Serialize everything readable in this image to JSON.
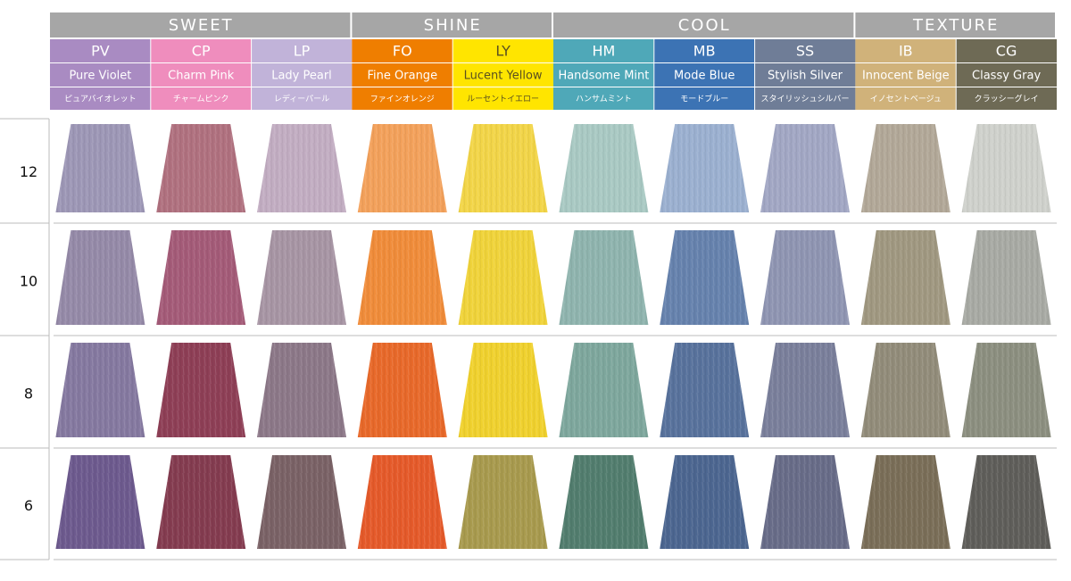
{
  "groups": [
    {
      "label": "SWEET",
      "colors": [
        {
          "code": "PV",
          "name": "Pure Violet",
          "jp": "ピュアバイオレット",
          "color": "#a98bc2",
          "text": "#ffffff"
        },
        {
          "code": "CP",
          "name": "Charm Pink",
          "jp": "チャームピンク",
          "color": "#ef8dbd",
          "text": "#ffffff"
        },
        {
          "code": "LP",
          "name": "Lady Pearl",
          "jp": "レディーパール",
          "color": "#c1b3d9",
          "text": "#ffffff"
        }
      ]
    },
    {
      "label": "SHINE",
      "colors": [
        {
          "code": "FO",
          "name": "Fine Orange",
          "jp": "ファインオレンジ",
          "color": "#ef7e00",
          "text": "#ffffff"
        },
        {
          "code": "LY",
          "name": "Lucent Yellow",
          "jp": "ルーセントイエロー",
          "color": "#ffe500",
          "text": "#5a5020"
        }
      ]
    },
    {
      "label": "COOL",
      "colors": [
        {
          "code": "HM",
          "name": "Handsome Mint",
          "jp": "ハンサムミント",
          "color": "#4fa8b8",
          "text": "#ffffff"
        },
        {
          "code": "MB",
          "name": "Mode Blue",
          "jp": "モードブルー",
          "color": "#3c73b4",
          "text": "#ffffff"
        },
        {
          "code": "SS",
          "name": "Stylish Silver",
          "jp": "スタイリッシュシルバー",
          "color": "#6f7d97",
          "text": "#ffffff"
        }
      ]
    },
    {
      "label": "TEXTURE",
      "colors": [
        {
          "code": "IB",
          "name": "Innocent Beige",
          "jp": "イノセントベージュ",
          "color": "#d0b27a",
          "text": "#ffffff"
        },
        {
          "code": "CG",
          "name": "Classy Gray",
          "jp": "クラッシーグレイ",
          "color": "#6e6a55",
          "text": "#ffffff"
        }
      ]
    }
  ],
  "levels": [
    {
      "label": "12",
      "swatches": [
        "#9d97b6",
        "#b0717f",
        "#c2adc2",
        "#f3a15b",
        "#f2d548",
        "#a9c9c3",
        "#9bb0d0",
        "#a2a7c4",
        "#b2a898",
        "#cfd1cc"
      ]
    },
    {
      "label": "10",
      "swatches": [
        "#958aa8",
        "#a45b78",
        "#a795a4",
        "#f08c3a",
        "#f0d33a",
        "#8fb4ae",
        "#6682ad",
        "#8f95b2",
        "#a09881",
        "#a8aaa4"
      ]
    },
    {
      "label": "8",
      "swatches": [
        "#8579a0",
        "#8e3f56",
        "#8c7888",
        "#e8692a",
        "#f0d12e",
        "#7ea79d",
        "#58729c",
        "#7a7f9b",
        "#928c7a",
        "#8c8f80"
      ]
    },
    {
      "label": "6",
      "swatches": [
        "#6d5a8e",
        "#843c50",
        "#7a6266",
        "#e55a2a",
        "#a89a4e",
        "#527d6e",
        "#4c6690",
        "#686c88",
        "#7a6e58",
        "#5f5e5a"
      ]
    }
  ]
}
